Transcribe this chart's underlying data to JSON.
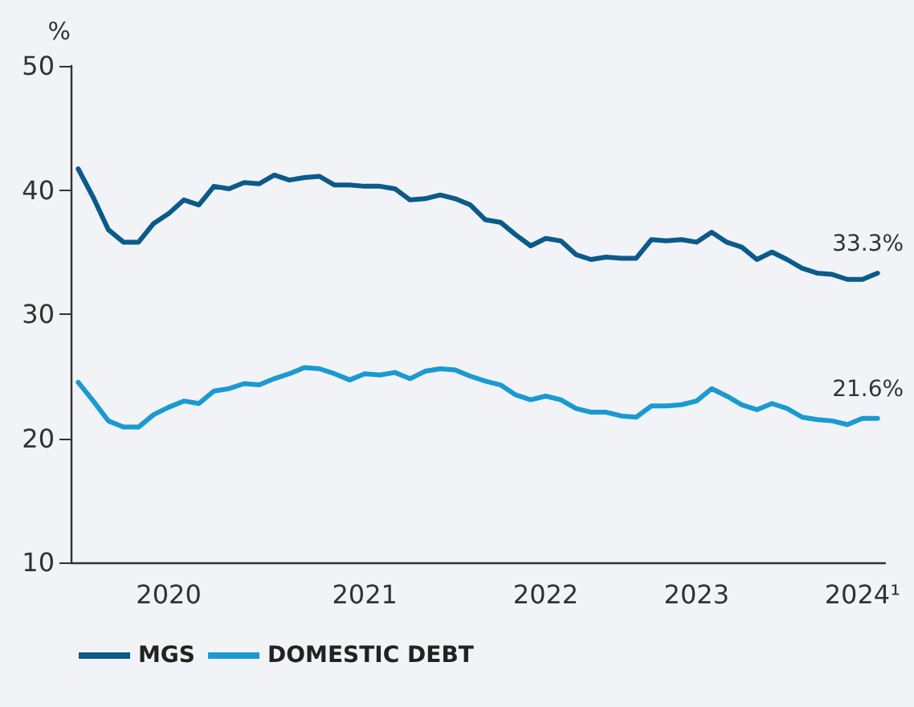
{
  "chart_data": {
    "type": "line",
    "ylabel": "%",
    "categories": [
      null,
      null,
      null,
      null,
      null,
      null,
      "2020",
      null,
      null,
      null,
      null,
      null,
      null,
      null,
      null,
      null,
      null,
      null,
      null,
      "2021",
      null,
      null,
      null,
      null,
      null,
      null,
      null,
      null,
      null,
      null,
      null,
      "2022",
      null,
      null,
      null,
      null,
      null,
      null,
      null,
      null,
      null,
      "2023",
      null,
      null,
      null,
      null,
      null,
      null,
      null,
      null,
      null,
      null,
      "2024¹",
      null
    ],
    "series": [
      {
        "name": "MGS",
        "color": "#0b5a8a",
        "values": [
          41.7,
          39.4,
          36.8,
          35.8,
          35.8,
          37.3,
          38.1,
          39.2,
          38.8,
          40.3,
          40.1,
          40.6,
          40.5,
          41.2,
          40.8,
          41.0,
          41.1,
          40.4,
          40.4,
          40.3,
          40.3,
          40.1,
          39.2,
          39.3,
          39.6,
          39.3,
          38.8,
          37.6,
          37.4,
          36.4,
          35.5,
          36.1,
          35.9,
          34.8,
          34.4,
          34.6,
          34.5,
          34.5,
          36.0,
          35.9,
          36.0,
          35.8,
          36.6,
          35.8,
          35.4,
          34.4,
          35.0,
          34.4,
          33.7,
          33.3,
          33.2,
          32.8,
          32.8,
          33.3
        ]
      },
      {
        "name": "DOMESTIC DEBT",
        "color": "#1a9ad0",
        "values": [
          24.5,
          23.0,
          21.4,
          20.9,
          20.9,
          21.9,
          22.5,
          23.0,
          22.8,
          23.8,
          24.0,
          24.4,
          24.3,
          24.8,
          25.2,
          25.7,
          25.6,
          25.2,
          24.7,
          25.2,
          25.1,
          25.3,
          24.8,
          25.4,
          25.6,
          25.5,
          25.0,
          24.6,
          24.3,
          23.5,
          23.1,
          23.4,
          23.1,
          22.4,
          22.1,
          22.1,
          21.8,
          21.7,
          22.6,
          22.6,
          22.7,
          23.0,
          24.0,
          23.4,
          22.7,
          22.3,
          22.8,
          22.4,
          21.7,
          21.5,
          21.4,
          21.1,
          21.6,
          21.6
        ]
      }
    ],
    "annotations": [
      {
        "text": "33.3%",
        "y": 33.3
      },
      {
        "text": "21.6%",
        "y": 21.6
      }
    ],
    "ylim": [
      10,
      50
    ],
    "yticks": [
      10,
      20,
      30,
      40,
      50
    ],
    "grid": false,
    "legend": "bottom left",
    "marker": "none",
    "line_style": "solid"
  }
}
